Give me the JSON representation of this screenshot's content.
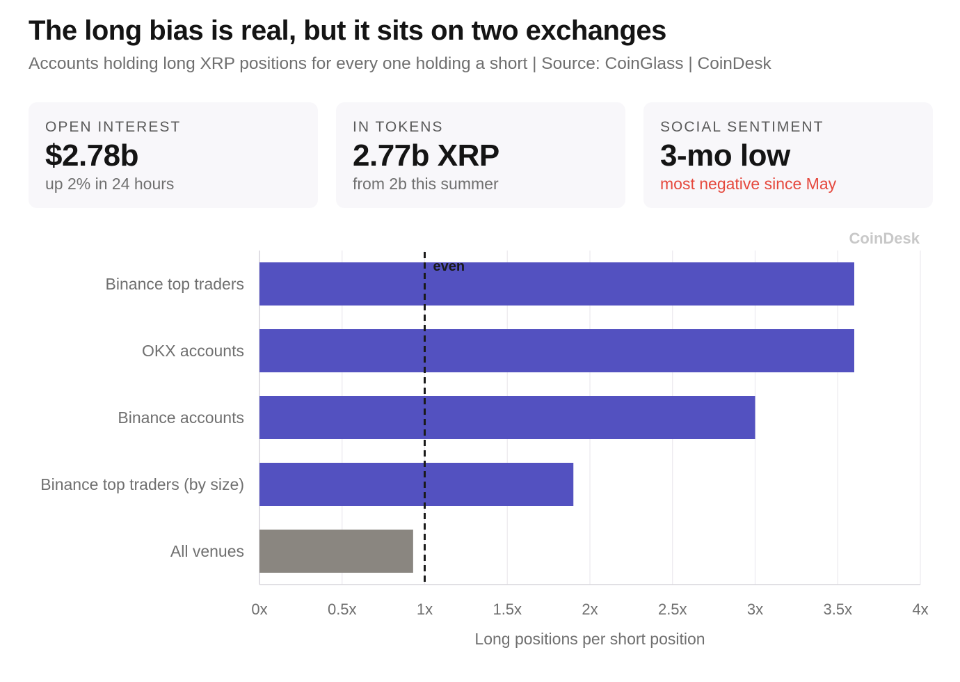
{
  "header": {
    "title": "The long bias is real, but it sits on two exchanges",
    "subtitle": "Accounts holding long XRP positions for every one holding a short | Source: CoinGlass | CoinDesk"
  },
  "cards": [
    {
      "label": "OPEN INTEREST",
      "value": "$2.78b",
      "note": "up 2% in 24 hours",
      "note_tone": "neutral"
    },
    {
      "label": "IN TOKENS",
      "value": "2.77b XRP",
      "note": "from 2b this summer",
      "note_tone": "neutral"
    },
    {
      "label": "SOCIAL SENTIMENT",
      "value": "3-mo low",
      "note": "most negative since May",
      "note_tone": "negative"
    }
  ],
  "chart_data": {
    "type": "bar",
    "orientation": "horizontal",
    "categories": [
      "Binance top traders",
      "OKX accounts",
      "Binance accounts",
      "Binance top traders (by size)",
      "All venues"
    ],
    "values": [
      3.6,
      3.6,
      3.0,
      1.9,
      0.93
    ],
    "bar_colors": [
      "#5351c0",
      "#5351c0",
      "#5351c0",
      "#5351c0",
      "#8a8680"
    ],
    "xlabel": "Long positions per short position",
    "xlim": [
      0,
      4
    ],
    "xticks": [
      0,
      0.5,
      1,
      1.5,
      2,
      2.5,
      3,
      3.5,
      4
    ],
    "xtick_labels": [
      "0x",
      "0.5x",
      "1x",
      "1.5x",
      "2x",
      "2.5x",
      "3x",
      "3.5x",
      "4x"
    ],
    "reference_line": {
      "x": 1,
      "label": "even",
      "style": "dashed",
      "color": "#1a1a1a"
    },
    "grid": true,
    "watermark": "CoinDesk"
  }
}
